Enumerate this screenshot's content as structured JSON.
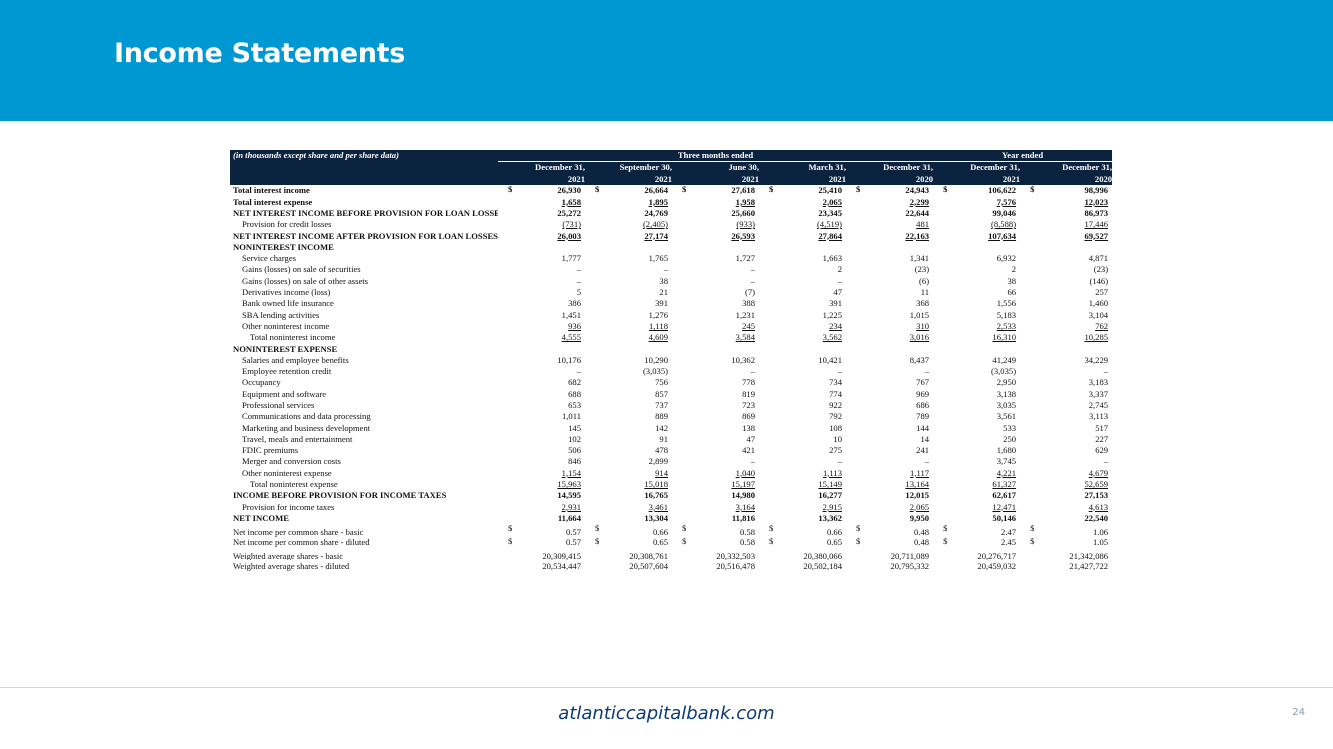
{
  "header": {
    "title": "Income Statements"
  },
  "table": {
    "note": "(in thousands except share and per share data)",
    "group_three_months": "Three months ended",
    "group_year": "Year ended",
    "columns": [
      {
        "month": "December 31,",
        "year": "2021"
      },
      {
        "month": "September 30,",
        "year": "2021"
      },
      {
        "month": "June 30,",
        "year": "2021"
      },
      {
        "month": "March 31,",
        "year": "2021"
      },
      {
        "month": "December 31,",
        "year": "2020"
      },
      {
        "month": "December 31,",
        "year": "2021"
      },
      {
        "month": "December 31,",
        "year": "2020"
      }
    ],
    "rows": [
      {
        "label": "Total interest income",
        "style": "bold",
        "currency": true,
        "values": [
          "26,930",
          "26,664",
          "27,618",
          "25,410",
          "24,943",
          "106,622",
          "98,996"
        ]
      },
      {
        "label": "Total interest expense",
        "style": "bold ul",
        "values": [
          "1,658",
          "1,895",
          "1,958",
          "2,065",
          "2,299",
          "7,576",
          "12,023"
        ]
      },
      {
        "label": "NET INTEREST INCOME BEFORE PROVISION FOR LOAN LOSSES",
        "style": "bold",
        "values": [
          "25,272",
          "24,769",
          "25,660",
          "23,345",
          "22,644",
          "99,046",
          "86,973"
        ]
      },
      {
        "label": "Provision for credit losses",
        "indent": 1,
        "style": "ul",
        "values": [
          "(731)",
          "(2,405)",
          "(933)",
          "(4,519)",
          "481",
          "(8,588)",
          "17,446"
        ]
      },
      {
        "label": "NET INTEREST INCOME AFTER PROVISION FOR LOAN LOSSES",
        "style": "bold ul",
        "values": [
          "26,003",
          "27,174",
          "26,593",
          "27,864",
          "22,163",
          "107,634",
          "69,527"
        ]
      },
      {
        "label": "NONINTEREST INCOME",
        "style": "bold",
        "values": [
          "",
          "",
          "",
          "",
          "",
          "",
          ""
        ]
      },
      {
        "label": "Service charges",
        "indent": 1,
        "values": [
          "1,777",
          "1,765",
          "1,727",
          "1,663",
          "1,341",
          "6,932",
          "4,871"
        ]
      },
      {
        "label": "Gains (losses) on sale of securities",
        "indent": 1,
        "values": [
          "–",
          "–",
          "–",
          "2",
          "(23)",
          "2",
          "(23)"
        ]
      },
      {
        "label": "Gains (losses) on sale of other assets",
        "indent": 1,
        "values": [
          "–",
          "38",
          "–",
          "–",
          "(6)",
          "38",
          "(146)"
        ]
      },
      {
        "label": "Derivatives income (loss)",
        "indent": 1,
        "values": [
          "5",
          "21",
          "(7)",
          "47",
          "11",
          "66",
          "257"
        ]
      },
      {
        "label": "Bank owned life insurance",
        "indent": 1,
        "values": [
          "386",
          "391",
          "388",
          "391",
          "368",
          "1,556",
          "1,460"
        ]
      },
      {
        "label": "SBA lending activities",
        "indent": 1,
        "values": [
          "1,451",
          "1,276",
          "1,231",
          "1,225",
          "1,015",
          "5,183",
          "3,104"
        ]
      },
      {
        "label": "Other noninterest income",
        "indent": 1,
        "style": "ul",
        "values": [
          "936",
          "1,118",
          "245",
          "234",
          "310",
          "2,533",
          "762"
        ]
      },
      {
        "label": "Total noninterest income",
        "indent": 2,
        "style": "ul",
        "values": [
          "4,555",
          "4,609",
          "3,584",
          "3,562",
          "3,016",
          "16,310",
          "10,285"
        ]
      },
      {
        "label": "NONINTEREST EXPENSE",
        "style": "bold",
        "values": [
          "",
          "",
          "",
          "",
          "",
          "",
          ""
        ]
      },
      {
        "label": "Salaries and employee benefits",
        "indent": 1,
        "values": [
          "10,176",
          "10,290",
          "10,362",
          "10,421",
          "8,437",
          "41,249",
          "34,229"
        ]
      },
      {
        "label": "Employee retention credit",
        "indent": 1,
        "values": [
          "–",
          "(3,035)",
          "–",
          "–",
          "–",
          "(3,035)",
          "–"
        ]
      },
      {
        "label": "Occupancy",
        "indent": 1,
        "values": [
          "682",
          "756",
          "778",
          "734",
          "767",
          "2,950",
          "3,183"
        ]
      },
      {
        "label": "Equipment and software",
        "indent": 1,
        "values": [
          "688",
          "857",
          "819",
          "774",
          "969",
          "3,138",
          "3,337"
        ]
      },
      {
        "label": "Professional services",
        "indent": 1,
        "values": [
          "653",
          "737",
          "723",
          "922",
          "686",
          "3,035",
          "2,745"
        ]
      },
      {
        "label": "Communications and data processing",
        "indent": 1,
        "values": [
          "1,011",
          "889",
          "869",
          "792",
          "789",
          "3,561",
          "3,113"
        ]
      },
      {
        "label": "Marketing and business development",
        "indent": 1,
        "values": [
          "145",
          "142",
          "138",
          "108",
          "144",
          "533",
          "517"
        ]
      },
      {
        "label": "Travel, meals and entertainment",
        "indent": 1,
        "values": [
          "102",
          "91",
          "47",
          "10",
          "14",
          "250",
          "227"
        ]
      },
      {
        "label": "FDIC premiums",
        "indent": 1,
        "values": [
          "506",
          "478",
          "421",
          "275",
          "241",
          "1,680",
          "629"
        ]
      },
      {
        "label": "Merger and conversion costs",
        "indent": 1,
        "values": [
          "846",
          "2,899",
          "–",
          "–",
          "–",
          "3,745",
          "–"
        ]
      },
      {
        "label": "Other noninterest expense",
        "indent": 1,
        "style": "ul",
        "values": [
          "1,154",
          "914",
          "1,040",
          "1,113",
          "1,117",
          "4,221",
          "4,679"
        ]
      },
      {
        "label": "Total noninterest expense",
        "indent": 2,
        "style": "ul",
        "values": [
          "15,963",
          "15,018",
          "15,197",
          "15,149",
          "13,164",
          "61,327",
          "52,659"
        ]
      },
      {
        "label": "INCOME BEFORE PROVISION FOR INCOME TAXES",
        "style": "bold",
        "values": [
          "14,595",
          "16,765",
          "14,980",
          "16,277",
          "12,015",
          "62,617",
          "27,153"
        ]
      },
      {
        "label": "Provision for income taxes",
        "indent": 1,
        "style": "ul",
        "values": [
          "2,931",
          "3,461",
          "3,164",
          "2,915",
          "2,065",
          "12,471",
          "4,613"
        ]
      },
      {
        "label": "NET INCOME",
        "style": "bold",
        "values": [
          "11,664",
          "13,304",
          "11,816",
          "13,362",
          "9,950",
          "50,146",
          "22,540"
        ]
      },
      {
        "label": "Net income per common share - basic",
        "style": "gap",
        "currency": true,
        "values": [
          "0.57",
          "0.66",
          "0.58",
          "0.66",
          "0.48",
          "2.47",
          "1.06"
        ]
      },
      {
        "label": "Net income per common share - diluted",
        "currency": true,
        "values": [
          "0.57",
          "0.65",
          "0.58",
          "0.65",
          "0.48",
          "2.45",
          "1.05"
        ]
      },
      {
        "label": "Weighted average shares - basic",
        "style": "gap",
        "values": [
          "20,309,415",
          "20,308,761",
          "20,332,503",
          "20,380,066",
          "20,711,089",
          "20,276,717",
          "21,342,086"
        ]
      },
      {
        "label": "Weighted average shares - diluted",
        "values": [
          "20,534,447",
          "20,507,604",
          "20,516,478",
          "20,502,184",
          "20,795,332",
          "20,459,032",
          "21,427,722"
        ]
      }
    ]
  },
  "footer": {
    "website": "atlanticcapitalbank.com",
    "page_number": "24"
  },
  "colors": {
    "banner": "#0098d3",
    "table_header": "#0c2340",
    "footer_text": "#0c3a75"
  }
}
